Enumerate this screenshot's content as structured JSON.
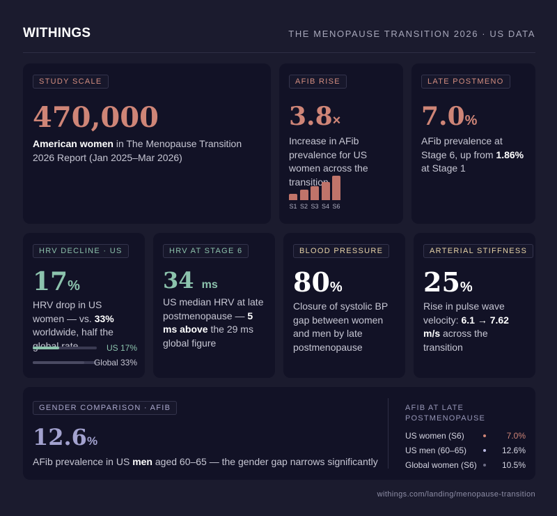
{
  "header": {
    "brand": "WITHINGS",
    "title": "THE MENOPAUSE TRANSITION 2026 · US DATA"
  },
  "cards": {
    "study_scale": {
      "tag": "STUDY SCALE",
      "value": "470,000",
      "desc_bold": "American women",
      "desc_rest": " in The Menopause Transition 2026 Report (Jan 2025–Mar 2026)"
    },
    "afib_rise": {
      "tag": "AFIB RISE",
      "value": "3.8",
      "unit": "×",
      "desc": "Increase in AFib prevalence for US women across the transition",
      "chart_data": {
        "type": "bar",
        "categories": [
          "S1",
          "S2",
          "S3",
          "S4",
          "S6"
        ],
        "values": [
          1.86,
          3.0,
          4.0,
          5.2,
          7.0
        ]
      }
    },
    "late_postmeno": {
      "tag": "LATE POSTMENO",
      "value": "7.0",
      "unit": "%",
      "desc_pre": "AFib prevalence at Stage 6, up from ",
      "desc_bold": "1.86%",
      "desc_post": " at Stage 1"
    },
    "hrv_decline": {
      "tag": "HRV DECLINE · US",
      "value": "17",
      "unit": "%",
      "desc_pre": "HRV drop in US women — vs. ",
      "desc_bold": "33%",
      "desc_post": " worldwide, half the global rate",
      "bars": [
        {
          "label": "US 17%",
          "value": 17,
          "color": "#8cc3ad",
          "label_color": "#8cc3ad"
        },
        {
          "label": "Global 33%",
          "value": 33,
          "color": "#4a4a62",
          "label_color": "#c6c6d3"
        }
      ]
    },
    "hrv_stage6": {
      "tag": "HRV AT STAGE 6",
      "value": "34",
      "unit": "ms",
      "desc_pre": "US median HRV at late postmenopause — ",
      "desc_bold": "5 ms above",
      "desc_post": " the 29 ms global figure"
    },
    "blood_pressure": {
      "tag": "BLOOD PRESSURE",
      "value": "80",
      "unit": "%",
      "desc": "Closure of systolic BP gap between women and men by late postmenopause"
    },
    "arterial": {
      "tag": "ARTERIAL STIFFNESS",
      "value": "25",
      "unit": "%",
      "desc_pre": "Rise in pulse wave velocity: ",
      "desc_bold": "6.1 → 7.62 m/s",
      "desc_post": " across the transition"
    },
    "gender": {
      "tag": "GENDER COMPARISON · AFIB",
      "value": "12.6",
      "unit": "%",
      "desc_pre": "AFib prevalence in US ",
      "desc_bold": "men",
      "desc_post": " aged 60–65 — the gender gap narrows significantly",
      "legend_title": "AFIB AT LATE POSTMENOPAUSE",
      "legend": [
        {
          "name": "US women (S6)",
          "value": "7.0%",
          "color": "#cf8577",
          "value_color": "#cf8577"
        },
        {
          "name": "US men (60–65)",
          "value": "12.6%",
          "color": "#b9b8e0",
          "value_color": "#d6d6e2"
        },
        {
          "name": "Global women (S6)",
          "value": "10.5%",
          "color": "#6c6c84",
          "value_color": "#d6d6e2"
        }
      ]
    }
  },
  "footer": "withings.com/landing/menopause-transition"
}
